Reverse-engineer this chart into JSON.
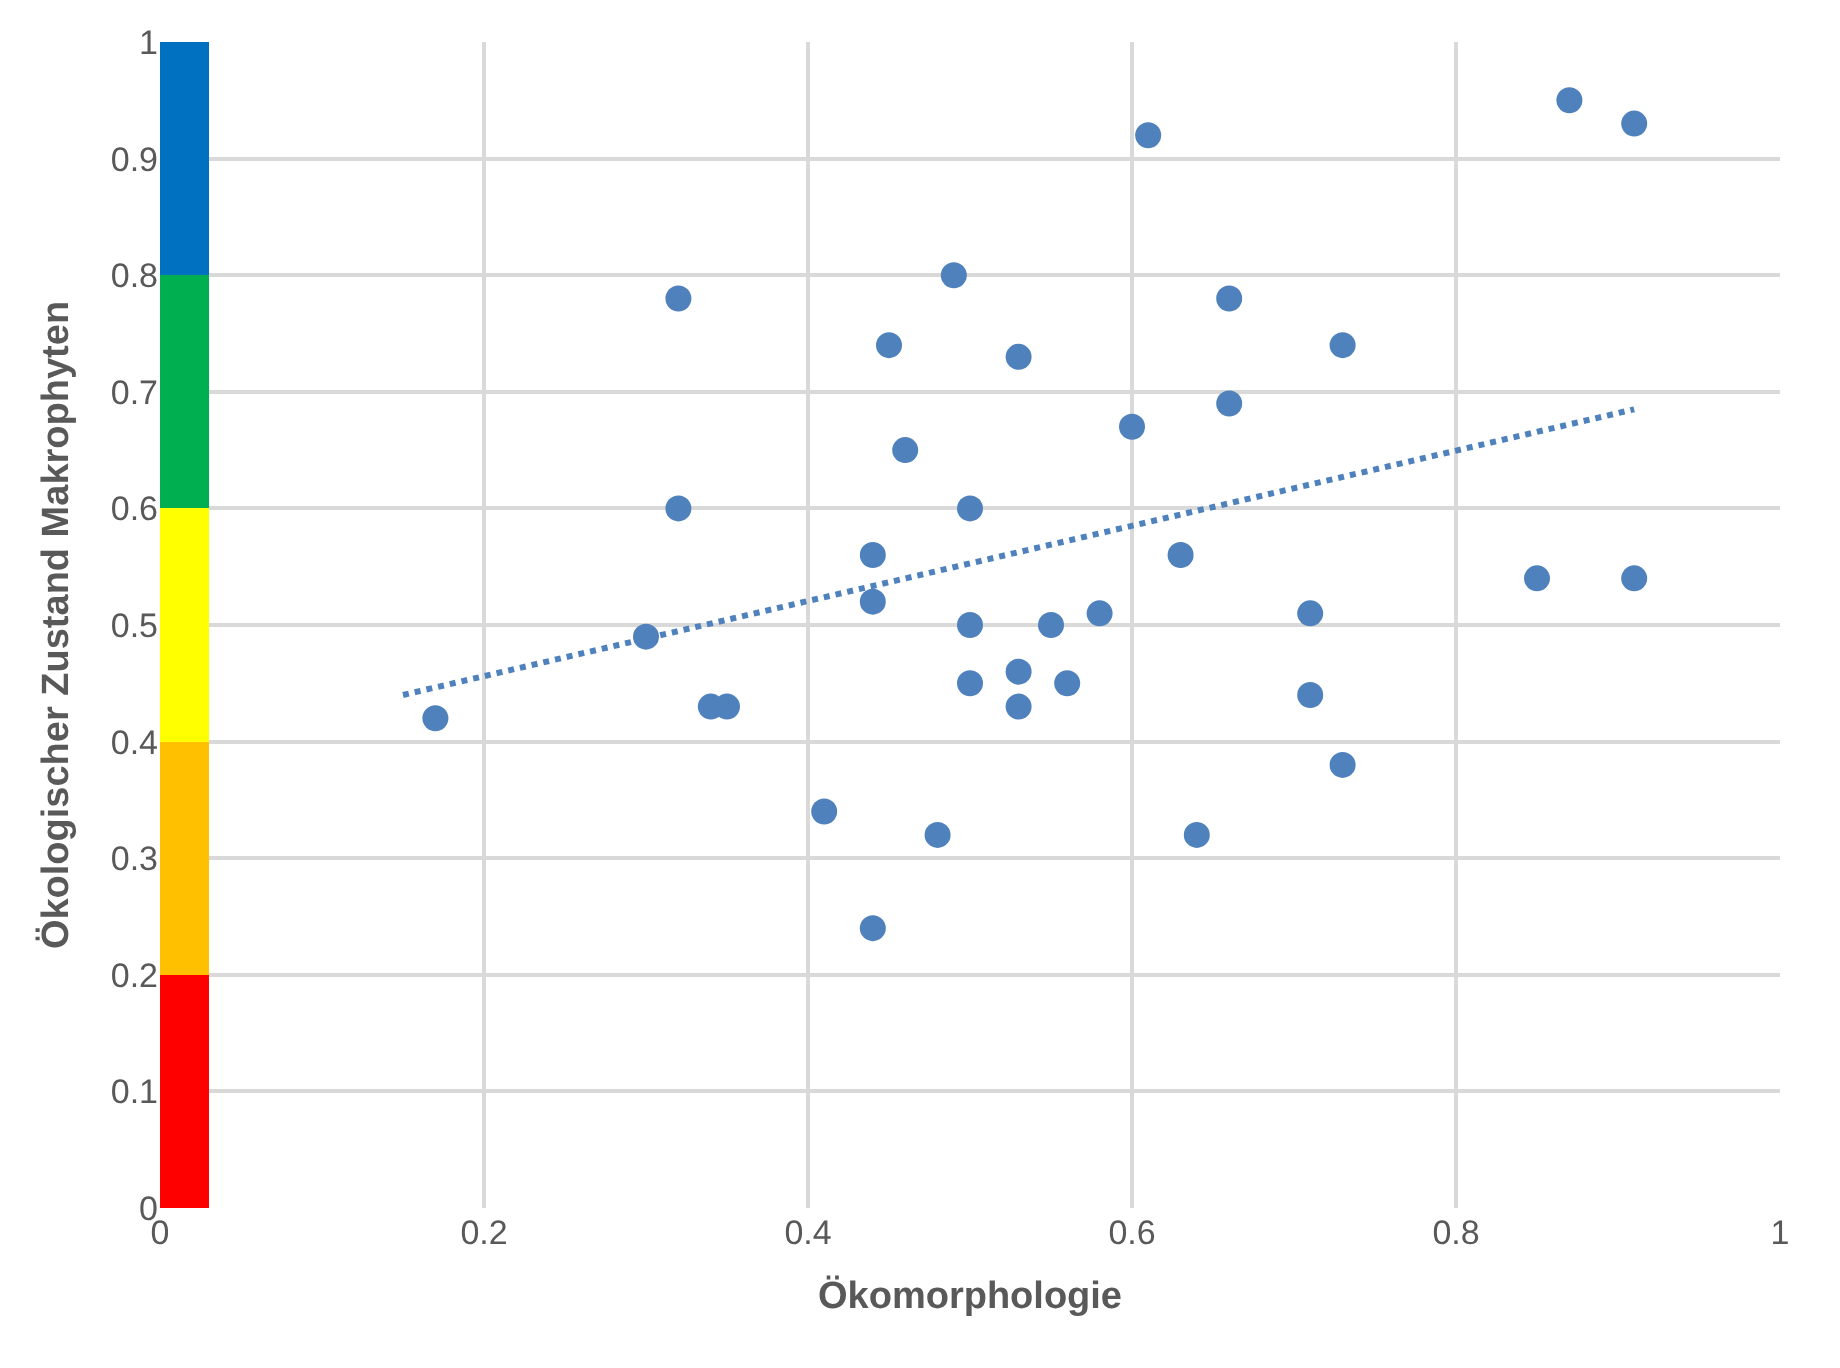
{
  "chart_data": {
    "type": "scatter",
    "xlabel": "Ökomorphologie",
    "ylabel": "Ökologischer Zustand Makrophyten",
    "xlim": [
      0,
      1
    ],
    "ylim": [
      0,
      1
    ],
    "xticks": [
      0,
      0.2,
      0.4,
      0.6,
      0.8,
      1
    ],
    "yticks": [
      0,
      0.1,
      0.2,
      0.3,
      0.4,
      0.5,
      0.6,
      0.7,
      0.8,
      0.9,
      1
    ],
    "grid": true,
    "legend": false,
    "marker": "circle",
    "stacked": true,
    "series": [
      {
        "type": "bar",
        "color": "#ff0000",
        "x": [
          0.015
        ],
        "values": [
          0.2
        ]
      },
      {
        "type": "bar",
        "color": "#ffc000",
        "x": [
          0.015
        ],
        "values": [
          0.2
        ]
      },
      {
        "type": "bar",
        "color": "#ffff00",
        "x": [
          0.015
        ],
        "values": [
          0.2
        ]
      },
      {
        "type": "bar",
        "color": "#00b050",
        "x": [
          0.015
        ],
        "values": [
          0.2
        ]
      },
      {
        "type": "bar",
        "color": "#0070c0",
        "x": [
          0.015
        ],
        "values": [
          0.2
        ]
      },
      {
        "color": "#4f81bd",
        "x": [
          0.17,
          0.3,
          0.32,
          0.32,
          0.34,
          0.35,
          0.41,
          0.44,
          0.44,
          0.44,
          0.45,
          0.46,
          0.48,
          0.49,
          0.5,
          0.5,
          0.5,
          0.53,
          0.53,
          0.53,
          0.55,
          0.56,
          0.58,
          0.6,
          0.61,
          0.63,
          0.64,
          0.66,
          0.66,
          0.71,
          0.71,
          0.73,
          0.73,
          0.85,
          0.87,
          0.91,
          0.91
        ],
        "values": [
          0.42,
          0.49,
          0.78,
          0.6,
          0.43,
          0.43,
          0.34,
          0.24,
          0.52,
          0.56,
          0.74,
          0.65,
          0.32,
          0.8,
          0.6,
          0.5,
          0.45,
          0.73,
          0.46,
          0.43,
          0.5,
          0.45,
          0.51,
          0.67,
          0.92,
          0.56,
          0.32,
          0.78,
          0.69,
          0.51,
          0.44,
          0.74,
          0.38,
          0.54,
          0.95,
          0.93,
          0.54
        ]
      },
      {
        "type": "line",
        "color": "#4f81bd",
        "line_style": "dotted",
        "marker": "none",
        "x": [
          0.15,
          0.91
        ],
        "values": [
          0.44,
          0.685
        ]
      }
    ]
  }
}
